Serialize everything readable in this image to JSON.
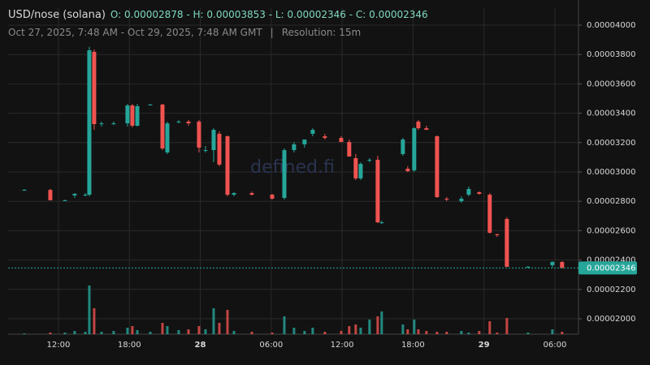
{
  "header": {
    "title": "USD/nose (solana)",
    "ohlc": "O: 0.00002878 - H: 0.00003853 - L: 0.00002346 - C: 0.00002346",
    "range": "Oct 27, 2025, 7:48 AM - Oct 29, 2025, 7:48 AM GMT",
    "separator": "|",
    "resolution": "Resolution: 15m",
    "watermark": "defined.fi"
  },
  "chart_data": {
    "type": "candlestick",
    "up_color": "#26a69a",
    "down_color": "#ef5350",
    "xlim": [
      7.74,
      56
    ],
    "xticks": [
      {
        "value": 12,
        "label": "12:00"
      },
      {
        "value": 18,
        "label": "18:00"
      },
      {
        "value": 24,
        "label": "28"
      },
      {
        "value": 30,
        "label": "06:00"
      },
      {
        "value": 36,
        "label": "12:00"
      },
      {
        "value": 42,
        "label": "18:00"
      },
      {
        "value": 48,
        "label": "29"
      },
      {
        "value": 54,
        "label": "06:00"
      }
    ],
    "ylim": [
      1.895e-05,
      4.116e-05
    ],
    "yticks": [
      {
        "value": 2e-05,
        "label": "0.00002000"
      },
      {
        "value": 2.2e-05,
        "label": "0.00002200"
      },
      {
        "value": 2.4e-05,
        "label": "0.00002400"
      },
      {
        "value": 2.6e-05,
        "label": "0.00002600"
      },
      {
        "value": 2.8e-05,
        "label": "0.00002800"
      },
      {
        "value": 3e-05,
        "label": "0.00003000"
      },
      {
        "value": 3.2e-05,
        "label": "0.00003200"
      },
      {
        "value": 3.4e-05,
        "label": "0.00003400"
      },
      {
        "value": 3.6e-05,
        "label": "0.00003600"
      },
      {
        "value": 3.8e-05,
        "label": "0.00003800"
      },
      {
        "value": 4e-05,
        "label": "0.00004000"
      }
    ],
    "grid": true,
    "last_price": {
      "value": 2.346e-05,
      "label": "0.00002346"
    },
    "x": [
      9.11,
      11.31,
      12.55,
      13.37,
      14.27,
      14.61,
      15.02,
      15.64,
      16.67,
      17.84,
      18.25,
      18.67,
      19.77,
      20.8,
      21.21,
      22.17,
      23.0,
      23.89,
      24.44,
      25.13,
      25.61,
      26.3,
      26.85,
      28.36,
      30.08,
      31.11,
      31.93,
      32.82,
      33.51,
      34.54,
      35.92,
      36.6,
      37.15,
      37.57,
      38.32,
      39.01,
      39.35,
      41.14,
      41.55,
      42.1,
      42.45,
      43.13,
      44.03,
      44.85,
      46.09,
      46.71,
      47.6,
      48.49,
      49.11,
      49.94,
      51.73,
      53.79,
      54.61
    ],
    "open": [
      2.878e-05,
      2.878e-05,
      2.807e-05,
      2.84e-05,
      2.845e-05,
      2.845e-05,
      3.818e-05,
      3.326e-05,
      3.331e-05,
      3.331e-05,
      3.453e-05,
      3.315e-05,
      3.459e-05,
      3.459e-05,
      3.133e-05,
      3.343e-05,
      3.343e-05,
      3.343e-05,
      3.149e-05,
      3.149e-05,
      3.26e-05,
      3.243e-05,
      2.845e-05,
      2.856e-05,
      2.845e-05,
      2.823e-05,
      3.149e-05,
      3.188e-05,
      3.26e-05,
      3.243e-05,
      3.232e-05,
      3.204e-05,
      3.094e-05,
      2.956e-05,
      3.077e-05,
      3.083e-05,
      2.657e-05,
      3.122e-05,
      3.022e-05,
      3.011e-05,
      3.343e-05,
      3.298e-05,
      3.243e-05,
      2.818e-05,
      2.801e-05,
      2.845e-05,
      2.862e-05,
      2.845e-05,
      2.575e-05,
      2.68e-05,
      2.354e-05,
      2.365e-05,
      2.387e-05
    ],
    "high": [
      2.884e-05,
      2.884e-05,
      2.812e-05,
      2.856e-05,
      2.856e-05,
      3.853e-05,
      3.834e-05,
      3.343e-05,
      3.343e-05,
      3.464e-05,
      3.464e-05,
      3.464e-05,
      3.464e-05,
      3.464e-05,
      3.343e-05,
      3.354e-05,
      3.354e-05,
      3.354e-05,
      3.177e-05,
      3.298e-05,
      3.276e-05,
      3.249e-05,
      2.862e-05,
      2.867e-05,
      2.851e-05,
      3.16e-05,
      3.204e-05,
      3.221e-05,
      3.298e-05,
      3.26e-05,
      3.243e-05,
      3.221e-05,
      3.122e-05,
      3.066e-05,
      3.094e-05,
      3.11e-05,
      2.668e-05,
      3.232e-05,
      3.039e-05,
      3.304e-05,
      3.354e-05,
      3.315e-05,
      3.249e-05,
      2.829e-05,
      2.834e-05,
      2.901e-05,
      2.867e-05,
      2.856e-05,
      2.58e-05,
      2.691e-05,
      2.359e-05,
      2.392e-05,
      2.392e-05
    ],
    "low": [
      2.873e-05,
      2.807e-05,
      2.801e-05,
      2.823e-05,
      2.834e-05,
      2.834e-05,
      3.287e-05,
      3.309e-05,
      3.32e-05,
      3.309e-05,
      3.304e-05,
      3.309e-05,
      3.453e-05,
      3.149e-05,
      3.122e-05,
      3.331e-05,
      3.315e-05,
      3.133e-05,
      3.133e-05,
      3.066e-05,
      3.039e-05,
      2.834e-05,
      2.834e-05,
      2.84e-05,
      2.812e-05,
      2.812e-05,
      3.133e-05,
      3.166e-05,
      3.243e-05,
      3.221e-05,
      3.204e-05,
      3.105e-05,
      2.945e-05,
      2.945e-05,
      3.066e-05,
      2.652e-05,
      2.646e-05,
      3.11e-05,
      3e-05,
      3e-05,
      3.287e-05,
      3.287e-05,
      2.823e-05,
      2.801e-05,
      2.79e-05,
      2.834e-05,
      2.845e-05,
      2.58e-05,
      2.558e-05,
      2.354e-05,
      2.348e-05,
      2.348e-05,
      2.346e-05
    ],
    "close": [
      2.878e-05,
      2.807e-05,
      2.807e-05,
      2.851e-05,
      2.845e-05,
      3.829e-05,
      3.326e-05,
      3.331e-05,
      3.331e-05,
      3.453e-05,
      3.315e-05,
      3.448e-05,
      3.459e-05,
      3.16e-05,
      3.331e-05,
      3.343e-05,
      3.331e-05,
      3.166e-05,
      3.149e-05,
      3.287e-05,
      3.05e-05,
      2.845e-05,
      2.856e-05,
      2.845e-05,
      2.818e-05,
      3.149e-05,
      3.188e-05,
      3.221e-05,
      3.287e-05,
      3.232e-05,
      3.204e-05,
      3.105e-05,
      2.956e-05,
      3.055e-05,
      3.083e-05,
      2.657e-05,
      2.657e-05,
      3.221e-05,
      3.005e-05,
      3.298e-05,
      3.298e-05,
      3.287e-05,
      2.829e-05,
      2.812e-05,
      2.818e-05,
      2.884e-05,
      2.851e-05,
      2.586e-05,
      2.569e-05,
      2.354e-05,
      2.354e-05,
      2.387e-05,
      2.346e-05
    ],
    "volume": [
      1,
      2,
      2,
      4,
      3,
      60,
      32,
      3,
      4,
      8,
      10,
      5,
      3,
      14,
      10,
      5,
      6,
      10,
      6,
      32,
      14,
      30,
      4,
      3,
      2,
      22,
      8,
      4,
      8,
      3,
      4,
      10,
      12,
      8,
      18,
      22,
      28,
      12,
      6,
      18,
      6,
      4,
      3,
      3,
      4,
      2,
      4,
      16,
      2,
      20,
      2,
      6,
      3
    ]
  }
}
